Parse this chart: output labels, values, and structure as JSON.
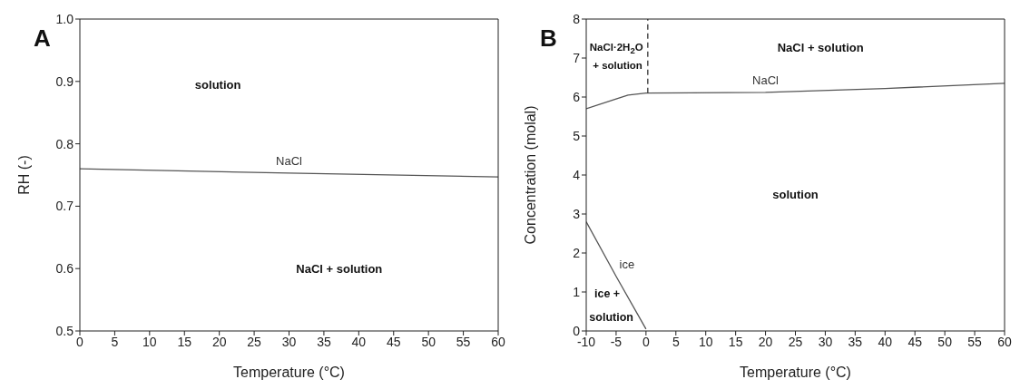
{
  "chart_data": [
    {
      "type": "line",
      "xlabel": "Temperature (°C)",
      "ylabel": "RH (-)",
      "xlim": [
        0,
        60
      ],
      "ylim": [
        0.5,
        1.0
      ],
      "xticks": [
        0,
        5,
        10,
        15,
        20,
        25,
        30,
        35,
        40,
        45,
        50,
        55,
        60
      ],
      "yticks": [
        0.5,
        0.6,
        0.7,
        0.8,
        0.9,
        {
          "value": 1.0,
          "label": "1.0"
        }
      ],
      "marker": "none",
      "series": [
        {
          "name": "NaCl",
          "color": "#555555",
          "x": [
            0,
            30,
            60
          ],
          "values": [
            0.76,
            0.753,
            0.747
          ]
        }
      ],
      "annotations": [
        "A",
        "solution",
        "NaCl + solution"
      ]
    },
    {
      "type": "line",
      "xlabel": "Temperature (°C)",
      "ylabel": "Concentration (molal)",
      "xlim": [
        -10,
        60
      ],
      "ylim": [
        0,
        8
      ],
      "xticks": [
        -10,
        -5,
        0,
        5,
        10,
        15,
        20,
        25,
        30,
        35,
        40,
        45,
        50,
        55,
        60
      ],
      "yticks": [
        0,
        1,
        2,
        3,
        4,
        5,
        6,
        7,
        8
      ],
      "marker": "none",
      "series": [
        {
          "name": "NaCl",
          "color": "#555555",
          "x": [
            -10,
            -5,
            -3,
            0,
            20,
            40,
            60
          ],
          "values": [
            5.7,
            5.95,
            6.05,
            6.1,
            6.12,
            6.22,
            6.35
          ]
        },
        {
          "name": "ice",
          "color": "#555555",
          "x": [
            -10,
            -5,
            0
          ],
          "values": [
            2.8,
            1.4,
            0.05
          ]
        },
        {
          "color": "#333333",
          "line_style": "dashed",
          "x": [
            0.3,
            0.3
          ],
          "values": [
            6.1,
            8
          ]
        }
      ],
      "annotations": [
        "B",
        "NaCl·2H$_{2}$O",
        "+ solution",
        "NaCl + solution",
        "solution",
        "ice +",
        "solution"
      ]
    }
  ]
}
